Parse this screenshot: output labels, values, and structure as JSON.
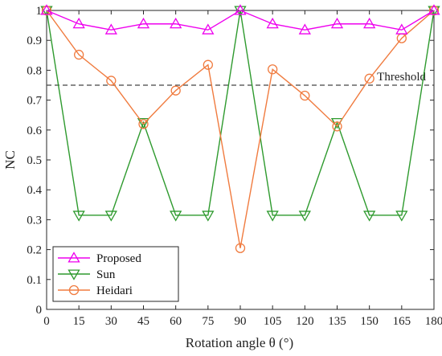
{
  "chart_data": {
    "type": "line",
    "xlabel": "Rotation angle θ (°)",
    "ylabel": "NC",
    "x": [
      0,
      15,
      30,
      45,
      60,
      75,
      90,
      105,
      120,
      135,
      150,
      165,
      180
    ],
    "xticks": [
      "0",
      "15",
      "30",
      "45",
      "60",
      "75",
      "90",
      "105",
      "120",
      "135",
      "150",
      "165",
      "180"
    ],
    "yticks": [
      "0",
      "0.1",
      "0.2",
      "0.3",
      "0.4",
      "0.5",
      "0.6",
      "0.7",
      "0.8",
      "0.9",
      "1"
    ],
    "xlim": [
      0,
      180
    ],
    "ylim": [
      0,
      1
    ],
    "grid": false,
    "legend_position": "bottom-left",
    "series": [
      {
        "name": "Proposed",
        "color": "#ee00ee",
        "marker": "triangle-up",
        "values": [
          1.0,
          0.955,
          0.935,
          0.955,
          0.955,
          0.935,
          1.0,
          0.955,
          0.935,
          0.955,
          0.955,
          0.935,
          1.0
        ]
      },
      {
        "name": "Sun",
        "color": "#2e9a2e",
        "marker": "triangle-down",
        "values": [
          1.0,
          0.315,
          0.315,
          0.625,
          0.315,
          0.315,
          1.0,
          0.315,
          0.315,
          0.625,
          0.315,
          0.315,
          1.0
        ]
      },
      {
        "name": "Heidari",
        "color": "#f07b3f",
        "marker": "circle",
        "values": [
          1.0,
          0.852,
          0.765,
          0.62,
          0.732,
          0.818,
          0.205,
          0.803,
          0.715,
          0.612,
          0.772,
          0.907,
          1.0
        ]
      }
    ],
    "threshold": {
      "value": 0.75,
      "label": "Threshold",
      "color": "#444444"
    }
  }
}
